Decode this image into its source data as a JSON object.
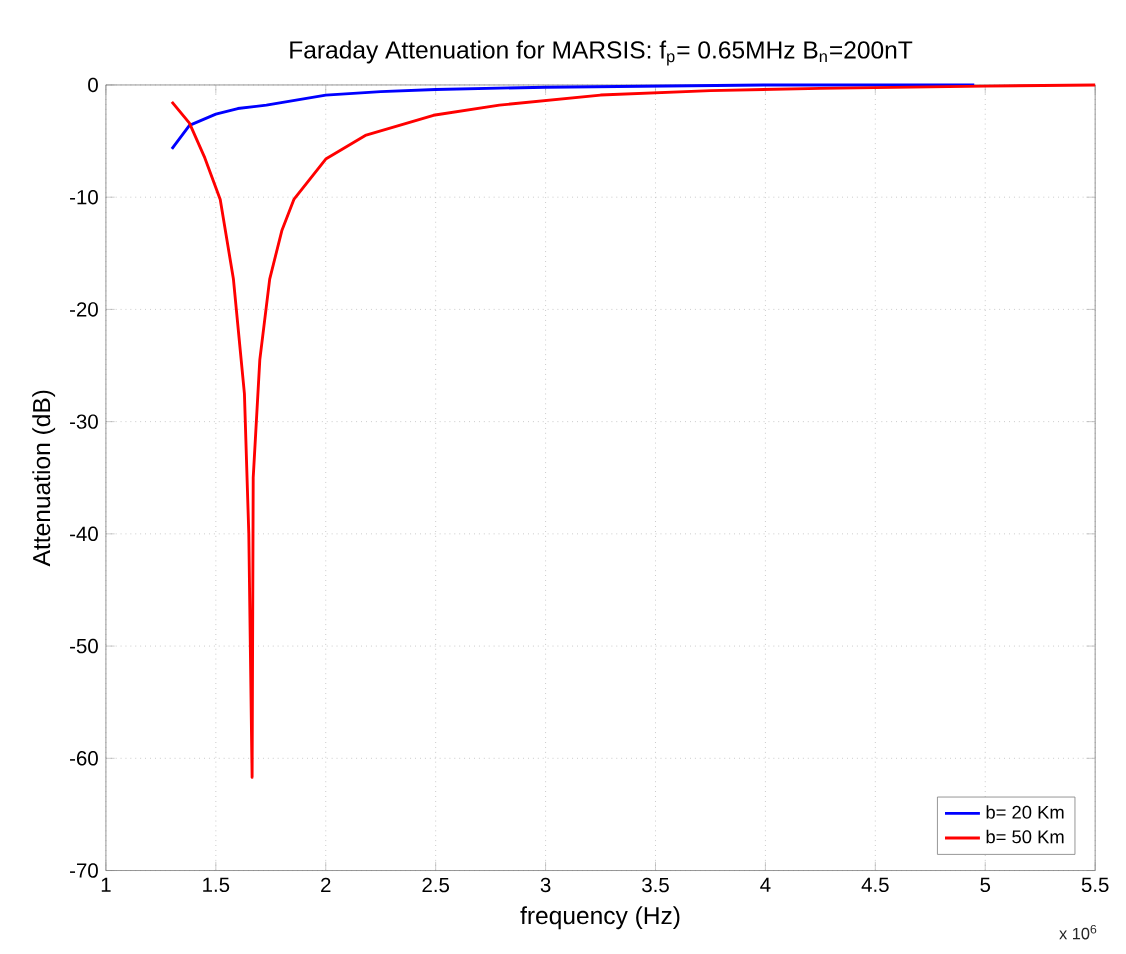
{
  "chart_data": {
    "type": "line",
    "title": "Faraday Attenuation for MARSIS: f$_{p}$= 0.65MHz B$_{n}$=200nT",
    "xlabel": "frequency (Hz)",
    "ylabel": "Attenuation  (dB)",
    "annotations": [
      "x 10$^{6}$"
    ],
    "xlim": [
      1,
      5.5
    ],
    "ylim": [
      -70,
      0
    ],
    "xticks": [
      1,
      1.5,
      2,
      2.5,
      3,
      3.5,
      4,
      4.5,
      5,
      5.5
    ],
    "yticks": [
      -70,
      -60,
      -50,
      -40,
      -30,
      -20,
      -10,
      0
    ],
    "grid": true,
    "legend": "bottom right",
    "line_style": "solid",
    "marker": "none",
    "series": [
      {
        "name": "b= 20 Km",
        "color": "#0000ff",
        "x": [
          1.3,
          1.38,
          1.5,
          1.6,
          1.73,
          2.0,
          2.25,
          2.5,
          3.0,
          3.5,
          4.0,
          4.5,
          4.95
        ],
        "values": [
          -5.7,
          -3.6,
          -2.6,
          -2.1,
          -1.8,
          -0.9,
          -0.6,
          -0.4,
          -0.2,
          -0.1,
          0,
          0,
          0
        ]
      },
      {
        "name": "b= 50 Km",
        "color": "#ff0000",
        "x": [
          1.3,
          1.38,
          1.45,
          1.52,
          1.58,
          1.63,
          1.65,
          1.665,
          1.67,
          1.7,
          1.745,
          1.8,
          1.855,
          2.0,
          2.18,
          2.49,
          2.79,
          3.25,
          3.75,
          4.25,
          5.0,
          5.5
        ],
        "values": [
          -1.5,
          -3.4,
          -6.5,
          -10.2,
          -17.3,
          -27.5,
          -40,
          -61.7,
          -35,
          -24.5,
          -17.3,
          -13,
          -10.2,
          -6.6,
          -4.5,
          -2.7,
          -1.8,
          -0.9,
          -0.5,
          -0.3,
          -0.1,
          0
        ]
      }
    ]
  }
}
